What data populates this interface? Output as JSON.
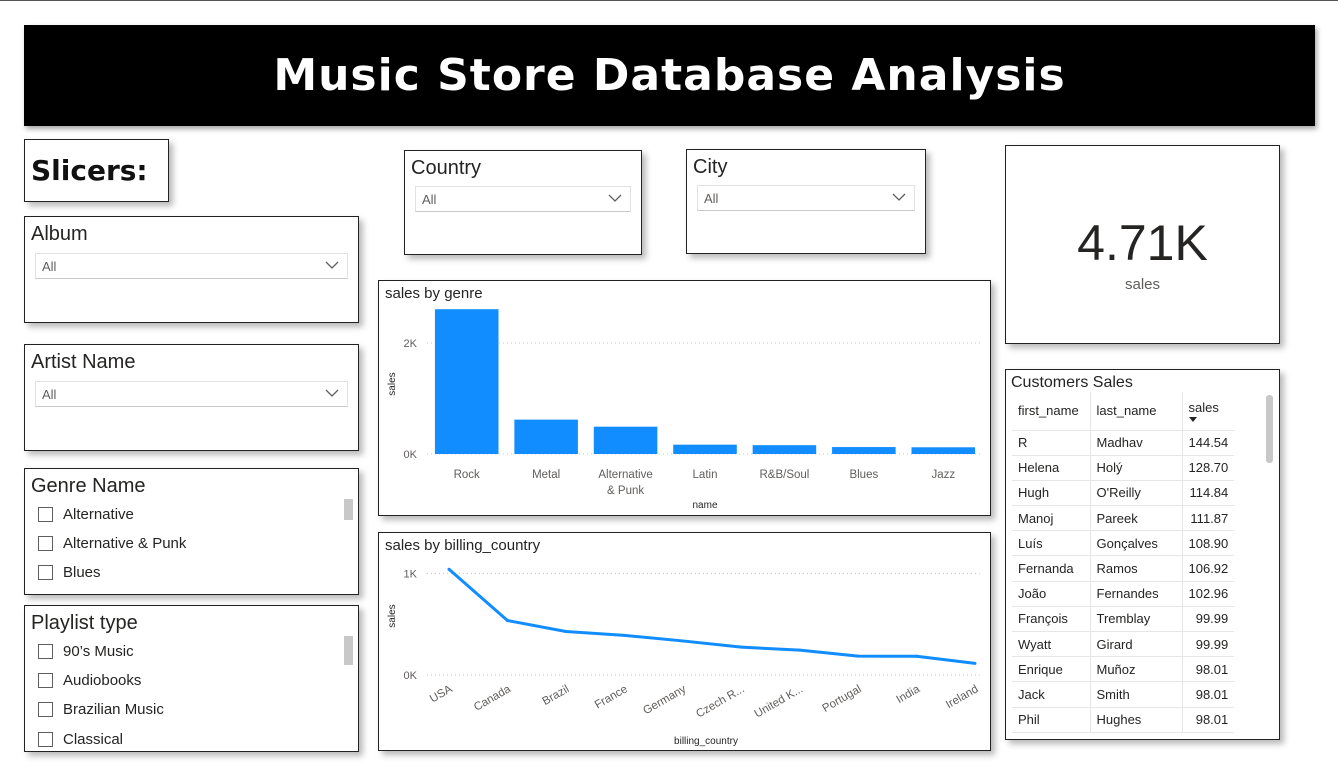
{
  "title": "Music Store Database Analysis",
  "slicers_label": "Slicers:",
  "slicers": {
    "album": {
      "title": "Album",
      "value": "All"
    },
    "artist": {
      "title": "Artist Name",
      "value": "All"
    },
    "country": {
      "title": "Country",
      "value": "All"
    },
    "city": {
      "title": "City",
      "value": "All"
    },
    "genre": {
      "title": "Genre Name",
      "items": [
        "Alternative",
        "Alternative & Punk",
        "Blues"
      ]
    },
    "playlist": {
      "title": "Playlist type",
      "items": [
        "90’s Music",
        "Audiobooks",
        "Brazilian Music",
        "Classical"
      ]
    }
  },
  "kpi": {
    "value": "4.71K",
    "label": "sales"
  },
  "customers": {
    "title": "Customers Sales",
    "columns": [
      "first_name",
      "last_name",
      "sales"
    ],
    "rows": [
      [
        "R",
        "Madhav",
        "144.54"
      ],
      [
        "Helena",
        "Holý",
        "128.70"
      ],
      [
        "Hugh",
        "O'Reilly",
        "114.84"
      ],
      [
        "Manoj",
        "Pareek",
        "111.87"
      ],
      [
        "Luís",
        "Gonçalves",
        "108.90"
      ],
      [
        "Fernanda",
        "Ramos",
        "106.92"
      ],
      [
        "João",
        "Fernandes",
        "102.96"
      ],
      [
        "François",
        "Tremblay",
        "99.99"
      ],
      [
        "Wyatt",
        "Girard",
        "99.99"
      ],
      [
        "Enrique",
        "Muñoz",
        "98.01"
      ],
      [
        "Jack",
        "Smith",
        "98.01"
      ],
      [
        "Phil",
        "Hughes",
        "98.01"
      ]
    ]
  },
  "colors": {
    "accent": "#118DFF",
    "banner": "#000000"
  },
  "chart_data": [
    {
      "type": "bar",
      "title": "sales by genre",
      "xlabel": "name",
      "ylabel": "sales",
      "categories": [
        "Rock",
        "Metal",
        "Alternative & Punk",
        "Latin",
        "R&B/Soul",
        "Blues",
        "Jazz"
      ],
      "category_lines": [
        [
          "Rock"
        ],
        [
          "Metal"
        ],
        [
          "Alternative",
          "& Punk"
        ],
        [
          "Latin"
        ],
        [
          "R&B/Soul"
        ],
        [
          "Blues"
        ],
        [
          "Jazz"
        ]
      ],
      "values": [
        2608,
        619,
        492,
        168,
        159,
        125,
        121
      ],
      "ylim": [
        0,
        2900
      ],
      "yticks": [
        0,
        2000
      ],
      "ytick_labels": [
        "0K",
        "2K"
      ],
      "grid": true
    },
    {
      "type": "line",
      "title": "sales by billing_country",
      "xlabel": "billing_country",
      "ylabel": "sales",
      "categories": [
        "USA",
        "Canada",
        "Brazil",
        "France",
        "Germany",
        "Czech R...",
        "United K...",
        "Portugal",
        "India",
        "Ireland"
      ],
      "values": [
        1040,
        536,
        428,
        390,
        335,
        274,
        245,
        186,
        184,
        114
      ],
      "ylim": [
        0,
        1200
      ],
      "yticks": [
        0,
        1000
      ],
      "ytick_labels": [
        "0K",
        "1K"
      ],
      "grid": true
    }
  ]
}
